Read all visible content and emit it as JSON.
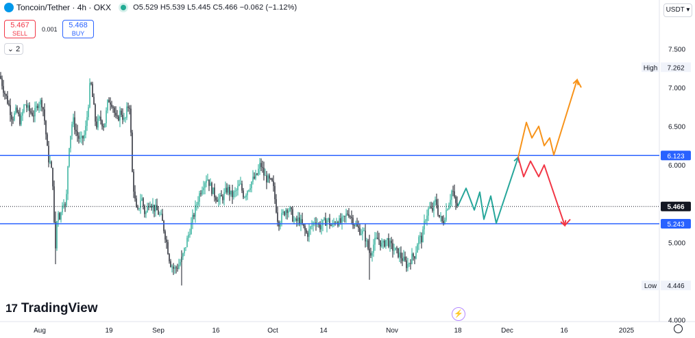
{
  "header": {
    "symbol": "Toncoin/Tether · 4h · OKX",
    "ohlc": "O5.529 H5.539 L5.445 C5.466 −0.062 (−1.12%)"
  },
  "trade": {
    "sell_price": "5.467",
    "sell_label": "SELL",
    "spread": "0.001",
    "buy_price": "5.468",
    "buy_label": "BUY"
  },
  "indicators_toggle": "2",
  "currency": "USDT",
  "brand": "TradingView",
  "colors": {
    "up": "#22ab94",
    "down": "#131722",
    "level_line": "#2962ff",
    "bull_path": "#f7931a",
    "bear_path": "#f23645",
    "neutral_path": "#26a69a"
  },
  "chart_data": {
    "type": "candlestick",
    "y_ticks": [
      {
        "value": 7.5,
        "label": "7.500"
      },
      {
        "value": 7.0,
        "label": "7.000"
      },
      {
        "value": 6.5,
        "label": "6.500"
      },
      {
        "value": 6.0,
        "label": "6.000"
      },
      {
        "value": 5.0,
        "label": "5.000"
      },
      {
        "value": 4.0,
        "label": "4.000"
      }
    ],
    "x_ticks": [
      "Aug",
      "19",
      "Sep",
      "16",
      "Oct",
      "14",
      "Nov",
      "18",
      "Dec",
      "16",
      "2025"
    ],
    "ylim": [
      3.98,
      7.9
    ],
    "high": {
      "label": "High",
      "value": "7.262"
    },
    "low": {
      "label": "Low",
      "value": "4.446"
    },
    "last_price": "5.466",
    "levels": [
      {
        "value": 6.123,
        "label": "6.123"
      },
      {
        "value": 5.243,
        "label": "5.243"
      }
    ],
    "price_path": [
      [
        0,
        7.15
      ],
      [
        6,
        6.95
      ],
      [
        12,
        6.8
      ],
      [
        18,
        6.6
      ],
      [
        24,
        6.7
      ],
      [
        30,
        6.55
      ],
      [
        36,
        6.8
      ],
      [
        42,
        6.7
      ],
      [
        50,
        6.65
      ],
      [
        56,
        6.82
      ],
      [
        62,
        6.8
      ],
      [
        66,
        6.5
      ],
      [
        70,
        6.1
      ],
      [
        74,
        6.0
      ],
      [
        78,
        5.7
      ],
      [
        80,
        4.75
      ],
      [
        84,
        5.45
      ],
      [
        88,
        5.3
      ],
      [
        92,
        5.6
      ],
      [
        96,
        5.4
      ],
      [
        100,
        6.2
      ],
      [
        106,
        6.6
      ],
      [
        112,
        6.4
      ],
      [
        118,
        6.3
      ],
      [
        124,
        6.4
      ],
      [
        128,
        6.7
      ],
      [
        132,
        7.1
      ],
      [
        136,
        6.8
      ],
      [
        140,
        6.5
      ],
      [
        146,
        6.6
      ],
      [
        152,
        6.5
      ],
      [
        158,
        6.85
      ],
      [
        164,
        6.8
      ],
      [
        170,
        6.55
      ],
      [
        176,
        6.7
      ],
      [
        182,
        6.55
      ],
      [
        186,
        6.75
      ],
      [
        190,
        6.78
      ],
      [
        192,
        6.0
      ],
      [
        196,
        5.6
      ],
      [
        200,
        5.35
      ],
      [
        206,
        5.6
      ],
      [
        212,
        5.35
      ],
      [
        218,
        5.55
      ],
      [
        224,
        5.45
      ],
      [
        230,
        5.4
      ],
      [
        236,
        5.3
      ],
      [
        242,
        5.05
      ],
      [
        248,
        4.75
      ],
      [
        254,
        4.65
      ],
      [
        260,
        4.7
      ],
      [
        266,
        4.8
      ],
      [
        272,
        5.0
      ],
      [
        278,
        5.2
      ],
      [
        284,
        5.4
      ],
      [
        290,
        5.6
      ],
      [
        296,
        5.75
      ],
      [
        302,
        5.85
      ],
      [
        308,
        5.7
      ],
      [
        314,
        5.6
      ],
      [
        320,
        5.55
      ],
      [
        326,
        5.6
      ],
      [
        332,
        5.7
      ],
      [
        338,
        5.6
      ],
      [
        344,
        5.65
      ],
      [
        350,
        5.75
      ],
      [
        356,
        5.6
      ],
      [
        362,
        5.7
      ],
      [
        368,
        5.8
      ],
      [
        374,
        5.85
      ],
      [
        380,
        6.02
      ],
      [
        386,
        5.85
      ],
      [
        392,
        5.8
      ],
      [
        398,
        5.75
      ],
      [
        402,
        5.5
      ],
      [
        406,
        5.25
      ],
      [
        412,
        5.35
      ],
      [
        418,
        5.45
      ],
      [
        424,
        5.4
      ],
      [
        430,
        5.25
      ],
      [
        436,
        5.3
      ],
      [
        442,
        5.2
      ],
      [
        448,
        5.1
      ],
      [
        454,
        5.2
      ],
      [
        460,
        5.3
      ],
      [
        466,
        5.2
      ],
      [
        472,
        5.25
      ],
      [
        478,
        5.3
      ],
      [
        484,
        5.2
      ],
      [
        490,
        5.3
      ],
      [
        496,
        5.25
      ],
      [
        502,
        5.3
      ],
      [
        508,
        5.4
      ],
      [
        514,
        5.3
      ],
      [
        520,
        5.2
      ],
      [
        526,
        5.15
      ],
      [
        532,
        5.1
      ],
      [
        536,
        4.95
      ],
      [
        540,
        4.85
      ],
      [
        546,
        5.0
      ],
      [
        552,
        5.05
      ],
      [
        558,
        4.95
      ],
      [
        564,
        5.05
      ],
      [
        570,
        4.95
      ],
      [
        576,
        4.9
      ],
      [
        582,
        4.85
      ],
      [
        588,
        4.78
      ],
      [
        594,
        4.7
      ],
      [
        600,
        4.8
      ],
      [
        606,
        4.85
      ],
      [
        610,
        5.05
      ],
      [
        616,
        5.05
      ],
      [
        620,
        5.3
      ],
      [
        626,
        5.45
      ],
      [
        630,
        5.4
      ],
      [
        636,
        5.55
      ],
      [
        640,
        5.35
      ],
      [
        646,
        5.25
      ],
      [
        652,
        5.45
      ],
      [
        656,
        5.55
      ],
      [
        660,
        5.7
      ],
      [
        664,
        5.5
      ],
      [
        668,
        5.47
      ]
    ],
    "projections": [
      {
        "name": "neutral",
        "points": [
          [
            668,
            5.47
          ],
          [
            680,
            5.7
          ],
          [
            692,
            5.42
          ],
          [
            700,
            5.65
          ],
          [
            706,
            5.3
          ],
          [
            716,
            5.6
          ],
          [
            724,
            5.25
          ],
          [
            756,
            6.1
          ]
        ]
      },
      {
        "name": "bullish",
        "points": [
          [
            756,
            6.1
          ],
          [
            768,
            6.55
          ],
          [
            776,
            6.35
          ],
          [
            786,
            6.5
          ],
          [
            794,
            6.25
          ],
          [
            802,
            6.35
          ],
          [
            808,
            6.13
          ],
          [
            842,
            7.1
          ],
          [
            848,
            7.0
          ]
        ]
      },
      {
        "name": "bearish",
        "points": [
          [
            756,
            6.1
          ],
          [
            764,
            5.85
          ],
          [
            774,
            6.05
          ],
          [
            786,
            5.85
          ],
          [
            794,
            6.0
          ],
          [
            824,
            5.22
          ],
          [
            832,
            5.3
          ]
        ]
      }
    ]
  }
}
